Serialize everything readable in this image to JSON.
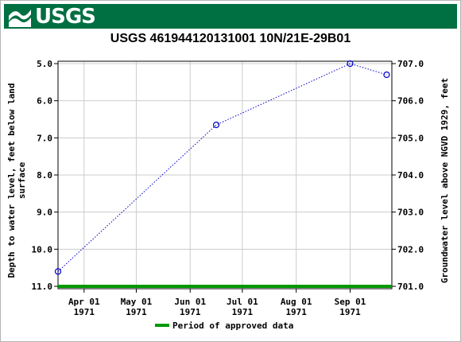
{
  "header": {
    "agency": "USGS",
    "brand_color": "#006f41"
  },
  "chart_data": {
    "type": "line",
    "title": "USGS 461944120131001 10N/21E-29B01",
    "ylabel_left_line1": "Depth to water level, feet below land",
    "ylabel_left_line2": "surface",
    "ylabel_right": "Groundwater level above NGVD 1929, feet",
    "y_left_ticks": [
      "5.0",
      "6.0",
      "7.0",
      "8.0",
      "9.0",
      "10.0",
      "11.0"
    ],
    "y_right_ticks": [
      "707.0",
      "706.0",
      "705.0",
      "704.0",
      "703.0",
      "702.0",
      "701.0"
    ],
    "ylim_left": [
      5.0,
      11.0
    ],
    "ylim_right": [
      707.0,
      701.0
    ],
    "xlim": [
      "1971-03-17",
      "1971-09-25"
    ],
    "x_ticks": [
      {
        "date": "1971-04-01",
        "line1": "Apr 01",
        "line2": "1971"
      },
      {
        "date": "1971-05-01",
        "line1": "May 01",
        "line2": "1971"
      },
      {
        "date": "1971-06-01",
        "line1": "Jun 01",
        "line2": "1971"
      },
      {
        "date": "1971-07-01",
        "line1": "Jul 01",
        "line2": "1971"
      },
      {
        "date": "1971-08-01",
        "line1": "Aug 01",
        "line2": "1971"
      },
      {
        "date": "1971-09-01",
        "line1": "Sep 01",
        "line2": "1971"
      }
    ],
    "series": [
      {
        "points": [
          {
            "x": "1971-03-17",
            "y": 10.6
          },
          {
            "x": "1971-06-16",
            "y": 6.65
          },
          {
            "x": "1971-09-01",
            "y": 5.0
          },
          {
            "x": "1971-09-22",
            "y": 5.3
          }
        ],
        "color": "#0000cc"
      }
    ],
    "approved_period": {
      "start": "1971-03-17",
      "end": "1971-09-25",
      "y": 11.0,
      "color": "#009900"
    },
    "legend": {
      "label": "Period of approved data",
      "placement": "bottom-center"
    },
    "grid": true
  }
}
